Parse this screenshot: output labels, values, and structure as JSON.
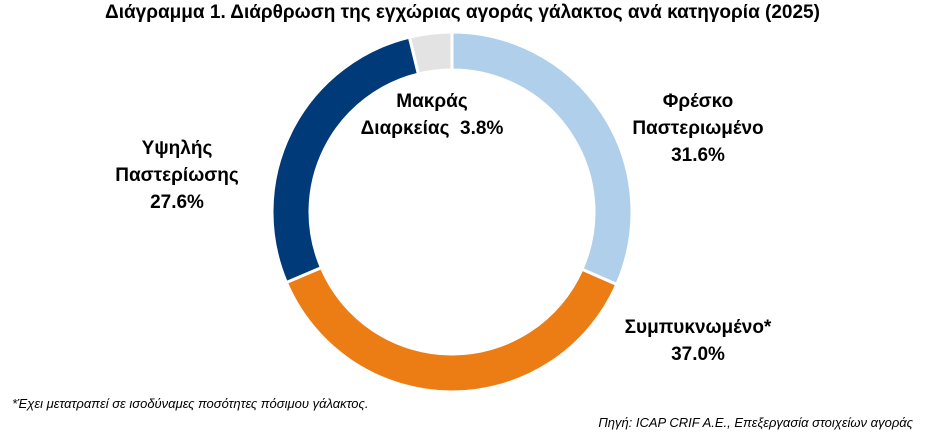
{
  "chart_data": {
    "type": "pie",
    "title": "Διάγραμμα 1. Διάρθρωση της εγχώριας αγοράς γάλακτος ανά κατηγορία (2025)",
    "donut": true,
    "legend": "none",
    "slices": [
      {
        "label_lines": [
          "Φρέσκο",
          "Παστεριωμένο"
        ],
        "value": 31.6,
        "value_label": "31.6%",
        "color": "#B0CFEB"
      },
      {
        "label_lines": [
          "Συμπυκνωμένο*"
        ],
        "value": 37.0,
        "value_label": "37.0%",
        "color": "#EC7D15"
      },
      {
        "label_lines": [
          "Υψηλής",
          "Παστερίωσης"
        ],
        "value": 27.6,
        "value_label": "27.6%",
        "color": "#003A78"
      },
      {
        "label_lines": [
          "Μακράς",
          "Διαρκείας"
        ],
        "value": 3.8,
        "value_label": "3.8%",
        "color": "#E3E3E3"
      }
    ]
  },
  "footnote": "*Έχει μετατραπεί σε ισοδύναμες ποσότητες πόσιμου γάλακτος.",
  "source": "Πηγή: ICAP CRIF A.E., Επεξεργασία στοιχείων αγοράς"
}
